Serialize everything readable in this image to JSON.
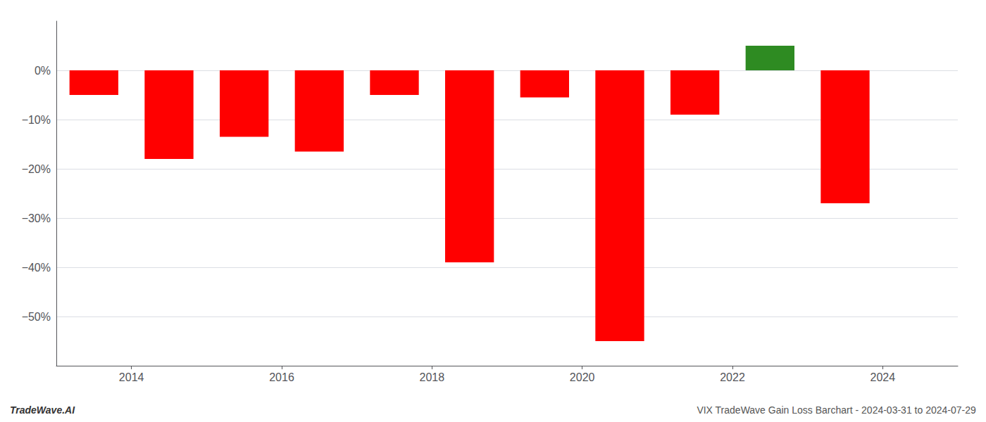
{
  "chart_data": {
    "type": "bar",
    "x": [
      2013.5,
      2014.5,
      2015.5,
      2016.5,
      2017.5,
      2018.5,
      2019.5,
      2020.5,
      2021.5,
      2022.5,
      2023.5
    ],
    "values": [
      -5.0,
      -18.0,
      -13.5,
      -16.5,
      -5.0,
      -39.0,
      -5.5,
      -55.0,
      -9.0,
      5.0,
      -27.0
    ],
    "colors": [
      "#ff0000",
      "#ff0000",
      "#ff0000",
      "#ff0000",
      "#ff0000",
      "#ff0000",
      "#ff0000",
      "#ff0000",
      "#ff0000",
      "#2e8b22",
      "#ff0000"
    ],
    "xlim": [
      2013,
      2025
    ],
    "xticks": [
      2014,
      2016,
      2018,
      2020,
      2022,
      2024
    ],
    "ylim": [
      -60,
      10
    ],
    "yticks": [
      {
        "value": 0,
        "label": "0%"
      },
      {
        "value": -10,
        "label": "−10%"
      },
      {
        "value": -20,
        "label": "−20%"
      },
      {
        "value": -30,
        "label": "−30%"
      },
      {
        "value": -40,
        "label": "−40%"
      },
      {
        "value": -50,
        "label": "−50%"
      }
    ],
    "grid": true,
    "annotations": [
      "TradeWave.AI",
      "VIX TradeWave Gain Loss Barchart - 2024-03-31 to 2024-07-29"
    ]
  }
}
